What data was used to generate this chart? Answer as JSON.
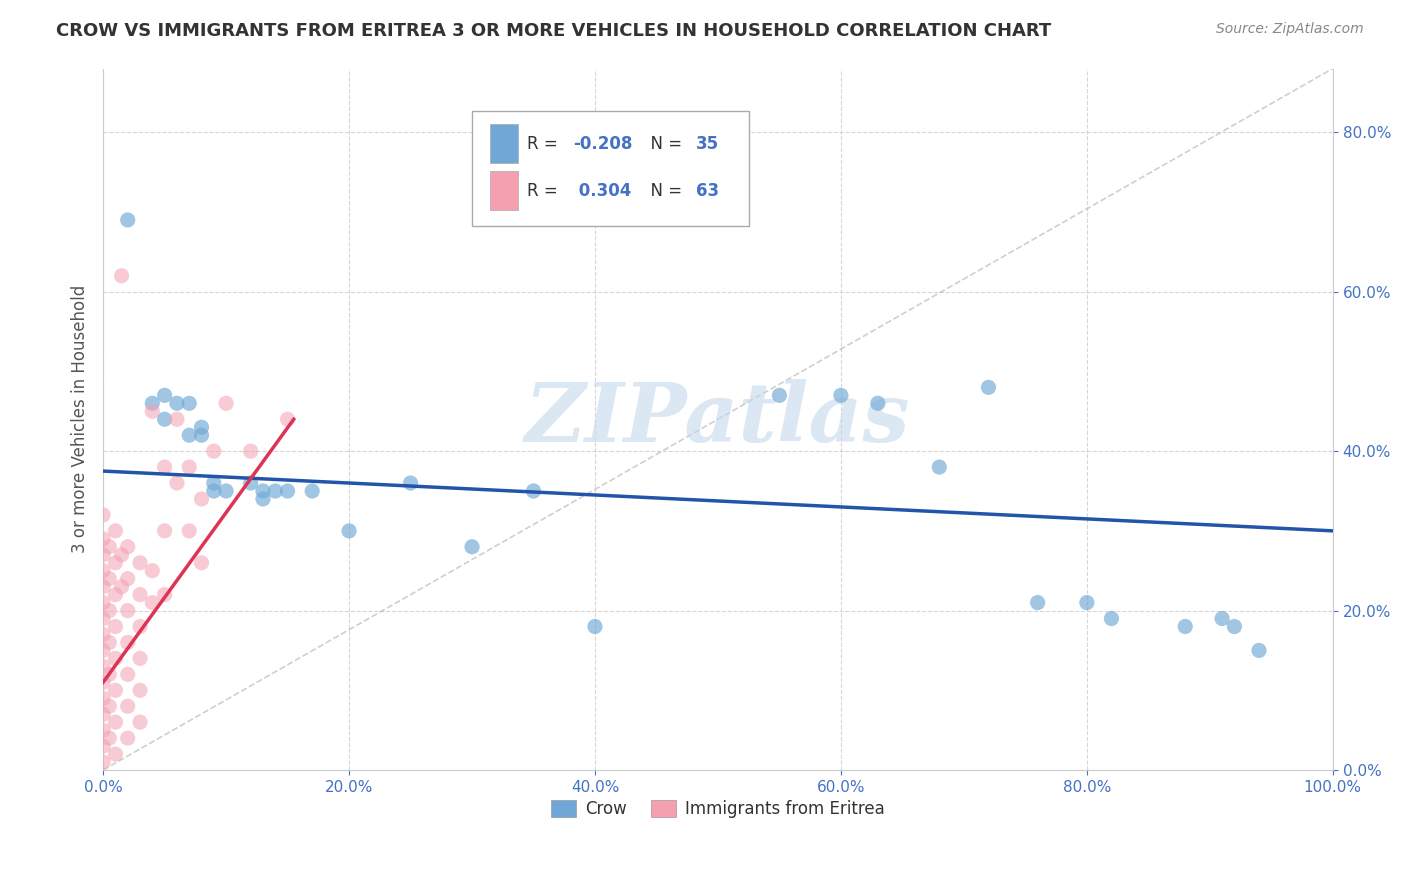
{
  "title": "CROW VS IMMIGRANTS FROM ERITREA 3 OR MORE VEHICLES IN HOUSEHOLD CORRELATION CHART",
  "source": "Source: ZipAtlas.com",
  "ylabel": "3 or more Vehicles in Household",
  "xlim": [
    0.0,
    1.0
  ],
  "ylim": [
    0.0,
    0.88
  ],
  "xticks": [
    0.0,
    0.2,
    0.4,
    0.6,
    0.8,
    1.0
  ],
  "yticks": [
    0.0,
    0.2,
    0.4,
    0.6,
    0.8
  ],
  "xtick_labels": [
    "0.0%",
    "20.0%",
    "40.0%",
    "60.0%",
    "80.0%",
    "100.0%"
  ],
  "ytick_labels": [
    "0.0%",
    "20.0%",
    "40.0%",
    "60.0%",
    "80.0%"
  ],
  "crow_color": "#6fa8d6",
  "eritrea_color": "#f4a0b0",
  "crow_line_color": "#2255aa",
  "eritrea_line_color": "#dd3355",
  "crow_R": "-0.208",
  "crow_N": "35",
  "eritrea_R": "0.304",
  "eritrea_N": "63",
  "crow_points": [
    [
      0.02,
      0.69
    ],
    [
      0.04,
      0.46
    ],
    [
      0.05,
      0.47
    ],
    [
      0.05,
      0.44
    ],
    [
      0.06,
      0.46
    ],
    [
      0.07,
      0.46
    ],
    [
      0.07,
      0.42
    ],
    [
      0.08,
      0.43
    ],
    [
      0.08,
      0.42
    ],
    [
      0.09,
      0.35
    ],
    [
      0.09,
      0.36
    ],
    [
      0.1,
      0.35
    ],
    [
      0.12,
      0.36
    ],
    [
      0.13,
      0.35
    ],
    [
      0.13,
      0.34
    ],
    [
      0.14,
      0.35
    ],
    [
      0.15,
      0.35
    ],
    [
      0.17,
      0.35
    ],
    [
      0.2,
      0.3
    ],
    [
      0.25,
      0.36
    ],
    [
      0.3,
      0.28
    ],
    [
      0.35,
      0.35
    ],
    [
      0.4,
      0.18
    ],
    [
      0.55,
      0.47
    ],
    [
      0.6,
      0.47
    ],
    [
      0.63,
      0.46
    ],
    [
      0.68,
      0.38
    ],
    [
      0.72,
      0.48
    ],
    [
      0.76,
      0.21
    ],
    [
      0.8,
      0.21
    ],
    [
      0.82,
      0.19
    ],
    [
      0.88,
      0.18
    ],
    [
      0.91,
      0.19
    ],
    [
      0.92,
      0.18
    ],
    [
      0.94,
      0.15
    ]
  ],
  "eritrea_points": [
    [
      0.0,
      0.32
    ],
    [
      0.0,
      0.29
    ],
    [
      0.0,
      0.27
    ],
    [
      0.0,
      0.25
    ],
    [
      0.0,
      0.23
    ],
    [
      0.0,
      0.21
    ],
    [
      0.0,
      0.19
    ],
    [
      0.0,
      0.17
    ],
    [
      0.0,
      0.15
    ],
    [
      0.0,
      0.13
    ],
    [
      0.0,
      0.11
    ],
    [
      0.0,
      0.09
    ],
    [
      0.0,
      0.07
    ],
    [
      0.0,
      0.05
    ],
    [
      0.0,
      0.03
    ],
    [
      0.0,
      0.01
    ],
    [
      0.005,
      0.28
    ],
    [
      0.005,
      0.24
    ],
    [
      0.005,
      0.2
    ],
    [
      0.005,
      0.16
    ],
    [
      0.005,
      0.12
    ],
    [
      0.005,
      0.08
    ],
    [
      0.005,
      0.04
    ],
    [
      0.01,
      0.3
    ],
    [
      0.01,
      0.26
    ],
    [
      0.01,
      0.22
    ],
    [
      0.01,
      0.18
    ],
    [
      0.01,
      0.14
    ],
    [
      0.01,
      0.1
    ],
    [
      0.01,
      0.06
    ],
    [
      0.01,
      0.02
    ],
    [
      0.015,
      0.62
    ],
    [
      0.015,
      0.27
    ],
    [
      0.015,
      0.23
    ],
    [
      0.02,
      0.28
    ],
    [
      0.02,
      0.24
    ],
    [
      0.02,
      0.2
    ],
    [
      0.02,
      0.16
    ],
    [
      0.02,
      0.12
    ],
    [
      0.02,
      0.08
    ],
    [
      0.02,
      0.04
    ],
    [
      0.03,
      0.26
    ],
    [
      0.03,
      0.22
    ],
    [
      0.03,
      0.18
    ],
    [
      0.03,
      0.14
    ],
    [
      0.03,
      0.1
    ],
    [
      0.03,
      0.06
    ],
    [
      0.04,
      0.45
    ],
    [
      0.04,
      0.25
    ],
    [
      0.04,
      0.21
    ],
    [
      0.05,
      0.38
    ],
    [
      0.05,
      0.3
    ],
    [
      0.05,
      0.22
    ],
    [
      0.06,
      0.44
    ],
    [
      0.06,
      0.36
    ],
    [
      0.07,
      0.38
    ],
    [
      0.07,
      0.3
    ],
    [
      0.08,
      0.34
    ],
    [
      0.08,
      0.26
    ],
    [
      0.09,
      0.4
    ],
    [
      0.1,
      0.46
    ],
    [
      0.12,
      0.4
    ],
    [
      0.15,
      0.44
    ]
  ],
  "watermark_text": "ZIPatlas",
  "watermark_color": "#c5d8ee",
  "grid_color": "#cccccc",
  "bg_color": "#ffffff",
  "tick_label_color": "#4472c4",
  "ylabel_color": "#555555",
  "title_color": "#333333",
  "source_color": "#888888",
  "legend_R_color": "#4472c4",
  "legend_text_color": "#333333"
}
